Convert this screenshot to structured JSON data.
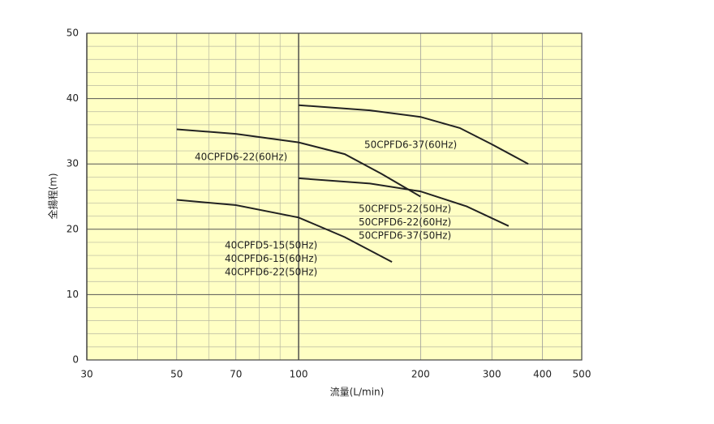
{
  "chart_data": {
    "type": "line",
    "x_label": "流量(L/min)",
    "y_label": "全揚程(m)",
    "xscale": "log",
    "xlim": [
      30,
      500
    ],
    "ylim": [
      0,
      50
    ],
    "xticks": [
      30,
      50,
      70,
      100,
      200,
      300,
      400,
      500
    ],
    "yticks": [
      0,
      10,
      20,
      30,
      40,
      50
    ],
    "xgrid_minor": [
      40,
      60,
      80,
      90
    ],
    "ygrid_minor": [
      2,
      4,
      6,
      8,
      12,
      14,
      16,
      18,
      22,
      24,
      26,
      28,
      32,
      34,
      36,
      38,
      42,
      44,
      46,
      48
    ],
    "grid": true,
    "background": "#ffffc4",
    "series": [
      {
        "labels": [
          "50CPFD6-37(60Hz)"
        ],
        "color": "#222222",
        "x": [
          100,
          150,
          200,
          250,
          300,
          369
        ],
        "values": [
          39,
          38.2,
          37.2,
          35.5,
          33,
          30
        ]
      },
      {
        "labels": [
          "40CPFD6-22(60Hz)"
        ],
        "color": "#222222",
        "x": [
          50,
          70,
          100,
          130,
          160,
          200
        ],
        "values": [
          35.3,
          34.6,
          33.3,
          31.5,
          28.5,
          25
        ]
      },
      {
        "labels": [
          "50CPFD5-22(50Hz)",
          "50CPFD6-22(60Hz)",
          "50CPFD6-37(50Hz)"
        ],
        "color": "#222222",
        "x": [
          100,
          150,
          200,
          260,
          330
        ],
        "values": [
          27.8,
          27,
          25.8,
          23.5,
          20.5
        ]
      },
      {
        "labels": [
          "40CPFD5-15(50Hz)",
          "40CPFD6-15(60Hz)",
          "40CPFD6-22(50Hz)"
        ],
        "color": "#222222",
        "x": [
          50,
          70,
          100,
          130,
          170
        ],
        "values": [
          24.5,
          23.7,
          21.8,
          18.8,
          15
        ]
      }
    ]
  }
}
